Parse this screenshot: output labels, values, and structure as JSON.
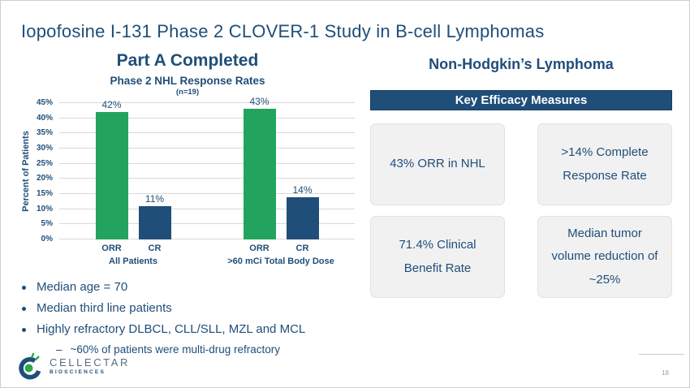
{
  "slide": {
    "title": "Iopofosine I-131 Phase 2 CLOVER-1 Study in B-cell Lymphomas",
    "page_number": "18"
  },
  "left": {
    "heading": "Part A Completed",
    "chart_title": "Phase 2 NHL  Response Rates",
    "chart_n": "(n=19)",
    "bullets": [
      {
        "text": "Median age = 70"
      },
      {
        "text": "Median third line patients"
      },
      {
        "text": "Highly refractory DLBCL, CLL/SLL, MZL and MCL",
        "sub": "~60% of patients were multi-drug refractory"
      }
    ],
    "sub_marker": "–"
  },
  "chart_data": {
    "type": "bar",
    "title": "Phase 2 NHL Response Rates",
    "subtitle": "(n=19)",
    "ylabel": "Percent of Patients",
    "ylim": [
      0,
      45
    ],
    "ytick_step": 5,
    "yticks": [
      "0%",
      "5%",
      "10%",
      "15%",
      "20%",
      "25%",
      "30%",
      "35%",
      "40%",
      "45%"
    ],
    "grid": true,
    "legend": "none",
    "bar_colors": {
      "ORR": "#22A45E",
      "CR": "#1F4E79"
    },
    "groups": [
      {
        "label": "All Patients",
        "bars": [
          {
            "category": "ORR",
            "value": 42,
            "label": "42%"
          },
          {
            "category": "CR",
            "value": 11,
            "label": "11%"
          }
        ]
      },
      {
        "label": ">60 mCi Total Body Dose",
        "bars": [
          {
            "category": "ORR",
            "value": 43,
            "label": "43%"
          },
          {
            "category": "CR",
            "value": 14,
            "label": "14%"
          }
        ]
      }
    ]
  },
  "right": {
    "heading": "Non-Hodgkin’s Lymphoma",
    "banner": "Key Efficacy Measures",
    "cards": [
      "43% ORR in NHL",
      ">14% Complete Response Rate",
      "71.4% Clinical Benefit Rate",
      "Median tumor volume reduction of ~25%"
    ]
  },
  "logo": {
    "name": "CELLECTAR",
    "sub": "BIOSCIENCES"
  },
  "colors": {
    "navy": "#1F4E79",
    "green": "#22A45E",
    "grid": "#D9D9D9",
    "card_bg": "#F1F1F2",
    "banner_bg": "#1F4E79",
    "logo_green": "#2BA84A"
  }
}
